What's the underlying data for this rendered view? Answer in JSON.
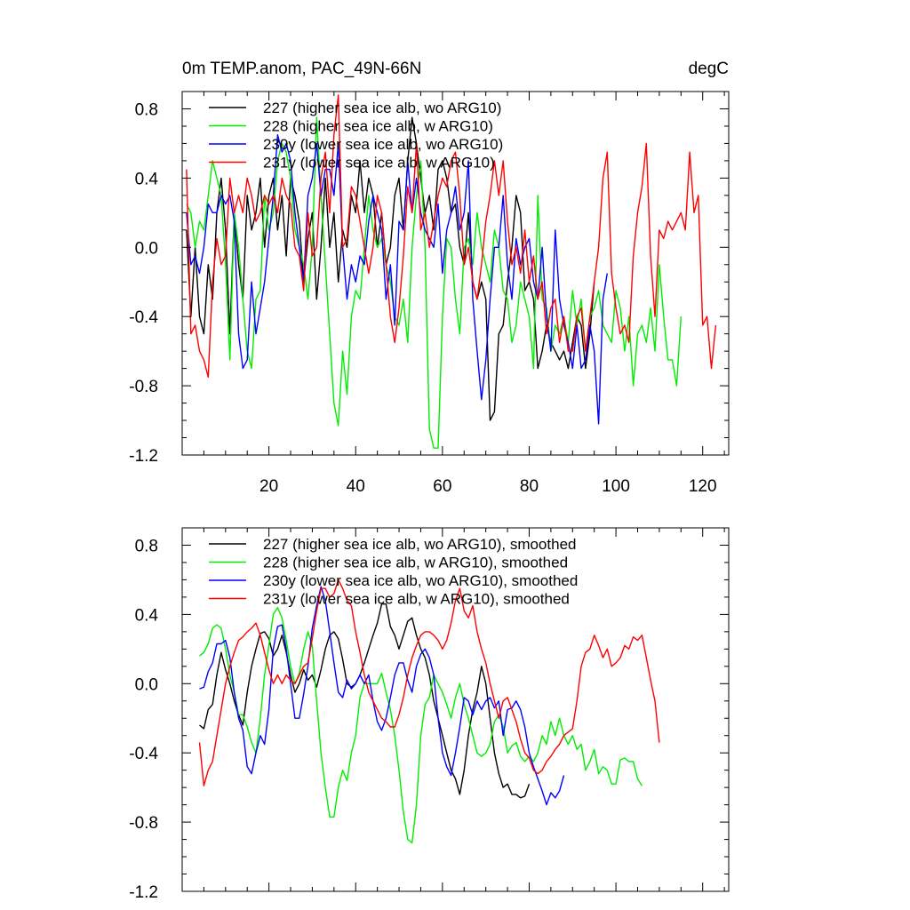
{
  "chart_data": [
    {
      "type": "line",
      "title": "0m TEMP.anom, PAC_49N-66N",
      "units": "degC",
      "xlim": [
        0,
        126
      ],
      "ylim": [
        -1.2,
        0.9
      ],
      "xticks": [
        20,
        40,
        60,
        80,
        100,
        120
      ],
      "xtick_labels": [
        "20",
        "40",
        "60",
        "80",
        "100",
        "120"
      ],
      "yticks": [
        0.8,
        0.4,
        0.0,
        -0.4,
        -0.8,
        -1.2
      ],
      "ytick_labels": [
        "0.8",
        "0.4",
        "0.0",
        "-0.4",
        "-0.8",
        "-1.2"
      ],
      "legend": "top-left",
      "series": [
        {
          "name": "227 (higher sea ice alb, wo ARG10)",
          "color": "#000000",
          "x_start": 1,
          "values": [
            0.1,
            -0.4,
            0.0,
            -0.4,
            -0.5,
            -0.1,
            -0.3,
            0.2,
            0.4,
            0.1,
            -0.5,
            0.2,
            -0.1,
            -0.3,
            0.3,
            0.1,
            0.2,
            0.4,
            0.0,
            0.3,
            0.4,
            0.1,
            0.3,
            -0.05,
            0.4,
            0.3,
            0.15,
            -0.2,
            0.05,
            0.2,
            -0.3,
            0.0,
            0.4,
            0.0,
            0.2,
            -0.2,
            0.1,
            0.0,
            0.3,
            0.2,
            0.5,
            0.2,
            0.4,
            0.3,
            0.0,
            0.2,
            -0.1,
            0.0,
            0.3,
            0.4,
            0.1,
            0.5,
            0.75,
            0.6,
            0.4,
            0.2,
            0.3,
            0.1,
            0.45,
            0.5,
            0.4,
            0.2,
            0.25,
            0.0,
            -0.1,
            0.2,
            -0.2,
            -0.3,
            -0.2,
            -0.3,
            -1.0,
            -0.95,
            -0.5,
            -0.45,
            -0.2,
            0.0,
            0.3,
            0.2,
            -0.25,
            -0.2,
            -0.3,
            -0.7,
            -0.6,
            -0.45,
            -0.55,
            -0.6,
            -0.65,
            -0.6,
            -0.7,
            -0.55,
            -0.4,
            -0.45,
            -0.7,
            -0.5,
            -0.2
          ]
        },
        {
          "name": "228 (higher sea ice alb, w ARG10)",
          "color": "#00ee00",
          "x_start": 1,
          "values": [
            0.25,
            0.2,
            0.0,
            0.15,
            0.1,
            0.3,
            0.5,
            0.4,
            0.3,
            -0.1,
            -0.65,
            0.2,
            0.0,
            -0.3,
            -0.6,
            -0.7,
            -0.3,
            -0.25,
            0.3,
            0.1,
            0.2,
            0.5,
            0.6,
            0.55,
            0.4,
            0.1,
            0.0,
            -0.1,
            -0.3,
            0.0,
            0.75,
            0.3,
            -0.1,
            -0.5,
            -0.9,
            -1.03,
            -0.6,
            -0.85,
            -0.4,
            -0.25,
            -0.3,
            0.0,
            0.3,
            0.1,
            0.0,
            0.05,
            -0.1,
            -0.2,
            -0.4,
            -0.45,
            -0.3,
            -0.55,
            0.0,
            0.3,
            0.5,
            0.0,
            -1.05,
            -1.16,
            -1.16,
            -0.4,
            0.05,
            0.0,
            -0.3,
            -0.5,
            0.0,
            0.05,
            -0.1,
            0.2,
            0.0,
            -0.1,
            -0.2,
            0.1,
            0.0,
            -0.25,
            -0.3,
            -0.55,
            -0.45,
            -0.2,
            -0.3,
            -0.4,
            -0.7,
            0.3,
            -0.3,
            -0.35,
            -0.6,
            -0.45,
            -0.5,
            -0.4,
            -0.55,
            -0.25,
            -0.45,
            -0.3,
            -0.6,
            -0.4,
            -0.35,
            -0.25,
            -0.45,
            -0.5,
            -0.55,
            -0.25,
            -0.35,
            -0.6,
            -0.4,
            -0.8,
            -0.5,
            -0.45,
            -0.55,
            -0.35,
            -0.6,
            -0.1,
            -0.4,
            -0.65,
            -0.65,
            -0.8,
            -0.4
          ]
        },
        {
          "name": "230y (lower sea ice alb, wo ARG10)",
          "color": "#0000ff",
          "x_start": 1,
          "values": [
            0.2,
            -0.1,
            -0.05,
            -0.15,
            0.0,
            0.25,
            0.2,
            0.2,
            0.3,
            0.25,
            0.3,
            0.15,
            -0.5,
            -0.7,
            -0.65,
            -0.2,
            -0.5,
            -0.35,
            -0.2,
            0.05,
            0.3,
            0.65,
            0.55,
            0.6,
            0.5,
            0.2,
            0.0,
            -0.2,
            0.3,
            0.4,
            0.6,
            0.3,
            0.45,
            0.45,
            0.3,
            0.6,
            0.0,
            -0.3,
            -0.1,
            -0.2,
            -0.05,
            -0.1,
            0.15,
            0.3,
            0.2,
            0.1,
            -0.3,
            -0.1,
            -0.45,
            0.15,
            0.1,
            0.5,
            0.2,
            0.4,
            0.2,
            0.1,
            0.05,
            0.0,
            0.25,
            -0.15,
            0.1,
            0.2,
            0.35,
            0.1,
            0.2,
            0.5,
            -0.3,
            -0.6,
            -0.88,
            -0.65,
            -0.3,
            0.0,
            0.0,
            0.3,
            -0.1,
            -0.3,
            0.05,
            -0.1,
            0.0,
            0.05,
            -0.2,
            -0.3,
            0.0,
            -0.4,
            -0.6,
            0.1,
            -0.3,
            -0.45,
            -0.55,
            -0.7,
            -0.45,
            -0.7,
            -0.65,
            -0.45,
            -0.6,
            -1.02,
            -0.3,
            -0.15
          ]
        },
        {
          "name": "231y (lower sea ice alb, w ARG10)",
          "color": "#ff0000",
          "x_start": 1,
          "values": [
            0.45,
            -0.5,
            -0.45,
            -0.6,
            -0.65,
            -0.75,
            -0.2,
            0.05,
            -0.1,
            -0.05,
            0.4,
            0.2,
            0.3,
            0.2,
            0.4,
            0.3,
            0.15,
            0.2,
            0.3,
            0.25,
            0.3,
            0.2,
            0.4,
            0.3,
            0.25,
            0.0,
            -0.05,
            -0.25,
            0.2,
            -0.05,
            0.0,
            0.4,
            0.55,
            0.2,
            0.65,
            0.88,
            0.0,
            0.05,
            0.35,
            0.3,
            0.15,
            0.0,
            -0.15,
            0.0,
            0.3,
            0.2,
            -0.1,
            -0.4,
            -0.55,
            -0.35,
            -0.05,
            0.35,
            0.2,
            0.6,
            0.1,
            0.2,
            0.0,
            0.15,
            0.3,
            0.4,
            0.35,
            0.5,
            0.55,
            0.3,
            -0.1,
            0.0,
            -0.2,
            -0.3,
            -0.1,
            0.15,
            0.3,
            0.5,
            0.3,
            0.5,
            0.15,
            -0.1,
            0.0,
            -0.15,
            0.1,
            -0.2,
            -0.05,
            -0.3,
            -0.2,
            -0.5,
            -0.35,
            -0.3,
            -0.55,
            -0.4,
            -0.6,
            -0.6,
            -0.4,
            -0.35,
            -0.6,
            -0.4,
            -0.2,
            0.0,
            0.4,
            0.55,
            -0.15,
            -0.35,
            -0.5,
            -0.45,
            -0.55,
            -0.05,
            0.2,
            0.35,
            0.6,
            -0.05,
            -0.4,
            0.1,
            0.05,
            0.15,
            0.1,
            0.15,
            0.2,
            0.1,
            0.55,
            0.2,
            0.3,
            -0.45,
            -0.4,
            -0.7,
            -0.45
          ]
        }
      ]
    },
    {
      "type": "line",
      "title": "",
      "xlim": [
        0,
        126
      ],
      "ylim": [
        -1.2,
        0.9
      ],
      "xticks": [
        20,
        40,
        60,
        80,
        100,
        120
      ],
      "xtick_labels": [],
      "yticks": [
        0.8,
        0.4,
        0.0,
        -0.4,
        -0.8,
        -1.2
      ],
      "ytick_labels": [
        "0.8",
        "0.4",
        "0.0",
        "-0.4",
        "-0.8",
        "-1.2"
      ],
      "legend": "top-left",
      "series": [
        {
          "name": "227 (higher sea ice alb, wo ARG10), smoothed",
          "color": "#000000",
          "x_start": 4,
          "values": [
            -0.24,
            -0.26,
            -0.15,
            -0.12,
            0.05,
            0.18,
            0.08,
            0.0,
            -0.1,
            -0.18,
            -0.24,
            -0.05,
            0.1,
            0.2,
            0.29,
            0.3,
            0.26,
            0.16,
            0.2,
            0.28,
            0.18,
            0.05,
            -0.05,
            0.0,
            0.08,
            0.02,
            0.05,
            -0.02,
            0.08,
            0.2,
            0.28,
            0.3,
            0.26,
            0.14,
            0.0,
            -0.02,
            0.0,
            0.05,
            0.12,
            0.2,
            0.28,
            0.35,
            0.46,
            0.46,
            0.33,
            0.28,
            0.2,
            0.28,
            0.36,
            0.38,
            0.28,
            0.2,
            0.15,
            0.05,
            -0.1,
            -0.2,
            -0.3,
            -0.4,
            -0.5,
            -0.55,
            -0.64,
            -0.5,
            -0.3,
            -0.15,
            -0.05,
            0.1,
            0.0,
            -0.2,
            -0.4,
            -0.52,
            -0.6,
            -0.58,
            -0.64,
            -0.64,
            -0.66,
            -0.65,
            -0.58
          ]
        },
        {
          "name": "228 (higher sea ice alb, w ARG10), smoothed",
          "color": "#00ee00",
          "x_start": 4,
          "values": [
            0.16,
            0.18,
            0.23,
            0.32,
            0.34,
            0.32,
            0.2,
            0.05,
            -0.05,
            -0.18,
            -0.18,
            -0.25,
            -0.34,
            -0.4,
            -0.2,
            0.05,
            0.22,
            0.4,
            0.44,
            0.38,
            0.25,
            0.1,
            0.0,
            0.06,
            0.2,
            0.3,
            0.22,
            -0.1,
            -0.4,
            -0.6,
            -0.77,
            -0.77,
            -0.6,
            -0.5,
            -0.56,
            -0.4,
            -0.3,
            -0.08,
            0.0,
            0.0,
            0.0,
            0.0,
            0.06,
            -0.05,
            -0.15,
            -0.3,
            -0.5,
            -0.74,
            -0.9,
            -0.92,
            -0.7,
            -0.3,
            -0.12,
            -0.08,
            0.05,
            0.0,
            -0.05,
            -0.12,
            -0.2,
            -0.08,
            0.0,
            -0.12,
            -0.2,
            -0.3,
            -0.4,
            -0.42,
            -0.4,
            -0.35,
            -0.22,
            -0.18,
            -0.25,
            -0.4,
            -0.36,
            -0.34,
            -0.42,
            -0.45,
            -0.42,
            -0.45,
            -0.4,
            -0.3,
            -0.35,
            -0.22,
            -0.3,
            -0.2,
            -0.3,
            -0.35,
            -0.3,
            -0.38,
            -0.35,
            -0.5,
            -0.45,
            -0.38,
            -0.52,
            -0.48,
            -0.5,
            -0.58,
            -0.58,
            -0.44,
            -0.43,
            -0.45,
            -0.45,
            -0.55,
            -0.59
          ]
        },
        {
          "name": "230y (lower sea ice alb, wo ARG10), smoothed",
          "color": "#0000ff",
          "x_start": 4,
          "values": [
            -0.03,
            -0.02,
            0.07,
            0.12,
            0.23,
            0.23,
            0.25,
            0.15,
            -0.05,
            -0.2,
            -0.27,
            -0.48,
            -0.52,
            -0.4,
            -0.3,
            -0.35,
            -0.15,
            0.2,
            0.33,
            0.34,
            0.2,
            0.0,
            -0.2,
            -0.2,
            -0.06,
            0.1,
            0.32,
            0.45,
            0.56,
            0.48,
            0.3,
            0.12,
            -0.05,
            -0.08,
            0.02,
            -0.03,
            0.0,
            0.05,
            0.0,
            0.05,
            -0.1,
            -0.22,
            -0.27,
            -0.2,
            -0.08,
            0.05,
            0.12,
            0.12,
            0.02,
            -0.05,
            0.1,
            0.17,
            0.2,
            0.15,
            0.05,
            -0.2,
            -0.4,
            -0.48,
            -0.53,
            -0.4,
            -0.25,
            -0.08,
            -0.1,
            -0.18,
            -0.1,
            -0.15,
            -0.1,
            -0.08,
            -0.14,
            -0.1,
            -0.3,
            -0.15,
            -0.14,
            -0.1,
            -0.15,
            -0.25,
            -0.4,
            -0.48,
            -0.55,
            -0.62,
            -0.7,
            -0.63,
            -0.66,
            -0.62,
            -0.53
          ]
        },
        {
          "name": "231y (lower sea ice alb, w ARG10), smoothed",
          "color": "#ff0000",
          "x_start": 4,
          "values": [
            -0.34,
            -0.59,
            -0.5,
            -0.45,
            -0.3,
            -0.15,
            0.0,
            0.1,
            0.18,
            0.25,
            0.27,
            0.3,
            0.32,
            0.35,
            0.28,
            0.18,
            0.08,
            0.0,
            0.05,
            0.0,
            0.05,
            0.02,
            0.0,
            0.05,
            0.1,
            0.12,
            0.26,
            0.42,
            0.55,
            0.55,
            0.5,
            0.52,
            0.6,
            0.55,
            0.48,
            0.45,
            0.3,
            0.18,
            0.05,
            -0.05,
            -0.1,
            -0.15,
            -0.2,
            -0.22,
            -0.25,
            -0.25,
            -0.18,
            -0.08,
            0.05,
            0.15,
            0.22,
            0.28,
            0.3,
            0.3,
            0.28,
            0.25,
            0.2,
            0.25,
            0.35,
            0.48,
            0.55,
            0.42,
            0.38,
            0.45,
            0.3,
            0.2,
            0.12,
            0.0,
            -0.1,
            -0.2,
            -0.1,
            -0.08,
            -0.15,
            -0.22,
            -0.32,
            -0.4,
            -0.43,
            -0.5,
            -0.52,
            -0.5,
            -0.45,
            -0.42,
            -0.38,
            -0.35,
            -0.3,
            -0.28,
            -0.26,
            -0.1,
            0.1,
            0.18,
            0.2,
            0.28,
            0.22,
            0.15,
            0.2,
            0.1,
            0.12,
            0.15,
            0.22,
            0.2,
            0.27,
            0.25,
            0.28,
            0.15,
            0.02,
            -0.1,
            -0.34
          ]
        }
      ]
    }
  ]
}
